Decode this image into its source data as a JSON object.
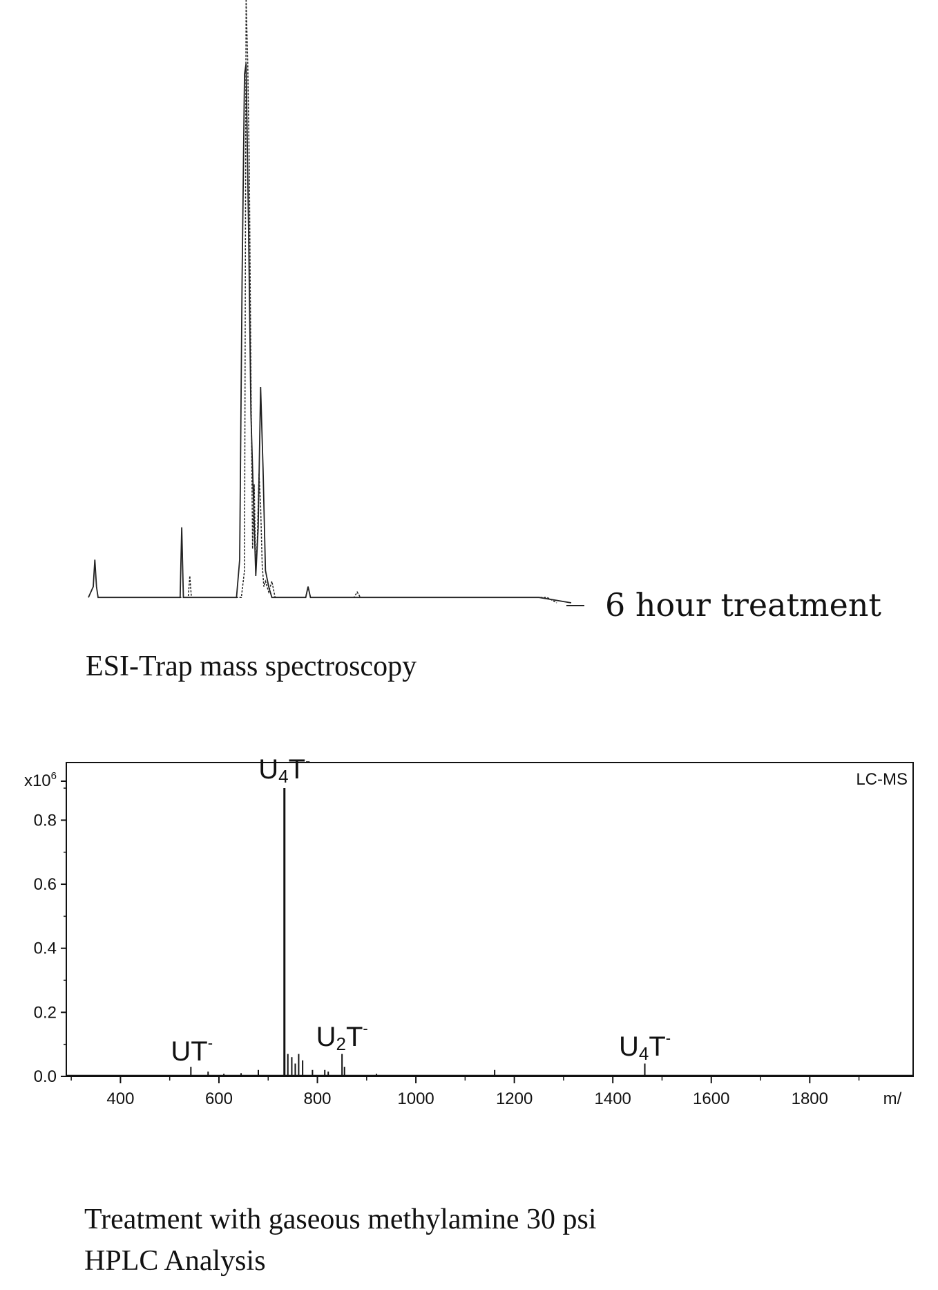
{
  "top_panel": {
    "trace_label": "6 hour treatment",
    "caption": "ESI-Trap mass spectroscopy"
  },
  "bottom_panel": {
    "captions": [
      "Treatment with gaseous methylamine 30 psi",
      "HPLC Analysis"
    ]
  },
  "chart_data": [
    {
      "type": "line",
      "title": "",
      "trace_label": "6 hour treatment",
      "xlabel": "",
      "ylabel": "",
      "axes_visible": false,
      "series": [
        {
          "line_style": "solid",
          "x": [
            0,
            6,
            8,
            10,
            12,
            16,
            20,
            34,
            40,
            108,
            114,
            116,
            118,
            120,
            122,
            126,
            130,
            184,
            188,
            191,
            194,
            196,
            199,
            202,
            205,
            208,
            211,
            214,
            217,
            220,
            224,
            228,
            232,
            236,
            240,
            270,
            273,
            276,
            280,
            284,
            330,
            336,
            340,
            400,
            480,
            560,
            600
          ],
          "y": [
            1,
            3,
            8,
            3,
            1,
            1,
            1,
            1,
            1,
            1,
            1,
            14,
            1,
            1,
            1,
            1,
            1,
            1,
            8,
            60,
            98,
            100,
            70,
            35,
            20,
            5,
            14,
            40,
            25,
            6,
            3,
            1,
            1,
            1,
            1,
            1,
            3,
            1,
            1,
            1,
            1,
            1,
            1,
            1,
            1,
            1,
            0
          ]
        },
        {
          "line_style": "dashed",
          "x": [
            40,
            60,
            100,
            124,
            126,
            128,
            132,
            150,
            190,
            194,
            196,
            198,
            200,
            202,
            204,
            206,
            208,
            210,
            212,
            214,
            216,
            218,
            220,
            224,
            228,
            232,
            240,
            270,
            273,
            276,
            280,
            330,
            334,
            338,
            400,
            480,
            520,
            570,
            582
          ],
          "y": [
            1,
            1,
            1,
            1,
            5,
            1,
            1,
            1,
            1,
            6,
            112,
            100,
            80,
            42,
            10,
            22,
            6,
            12,
            24,
            18,
            7,
            3,
            4,
            2,
            4,
            1,
            1,
            1,
            3,
            1,
            1,
            1,
            2,
            1,
            1,
            1,
            1,
            1,
            0
          ]
        }
      ]
    },
    {
      "type": "bar",
      "title": "",
      "xlabel": "m/",
      "ylabel": "",
      "y_scale_label": "x10",
      "y_scale_exponent": "6",
      "instrument_label": "LC-MS",
      "xlim": [
        290,
        2010
      ],
      "ylim": [
        0,
        1.0
      ],
      "x_ticks": [
        400,
        600,
        800,
        1000,
        1200,
        1400,
        1600,
        1800
      ],
      "y_ticks": [
        0.0,
        0.2,
        0.4,
        0.6,
        0.8
      ],
      "x_tick_labels": [
        "400",
        "600",
        "800",
        "1000",
        "1200",
        "1400",
        "1600",
        "1800"
      ],
      "y_tick_labels": [
        "0.0",
        "0.2",
        "0.4",
        "0.6",
        "0.8"
      ],
      "peaks": [
        {
          "mz": 543,
          "intensity": 0.03
        },
        {
          "mz": 578,
          "intensity": 0.015
        },
        {
          "mz": 610,
          "intensity": 0.008
        },
        {
          "mz": 645,
          "intensity": 0.01
        },
        {
          "mz": 680,
          "intensity": 0.02
        },
        {
          "mz": 733,
          "intensity": 0.9
        },
        {
          "mz": 740,
          "intensity": 0.07
        },
        {
          "mz": 748,
          "intensity": 0.06
        },
        {
          "mz": 755,
          "intensity": 0.04
        },
        {
          "mz": 762,
          "intensity": 0.07
        },
        {
          "mz": 770,
          "intensity": 0.05
        },
        {
          "mz": 790,
          "intensity": 0.02
        },
        {
          "mz": 815,
          "intensity": 0.02
        },
        {
          "mz": 822,
          "intensity": 0.015
        },
        {
          "mz": 850,
          "intensity": 0.07
        },
        {
          "mz": 855,
          "intensity": 0.03
        },
        {
          "mz": 920,
          "intensity": 0.008
        },
        {
          "mz": 1160,
          "intensity": 0.02
        },
        {
          "mz": 1465,
          "intensity": 0.04
        }
      ],
      "annotations": [
        {
          "base": "U",
          "sub": "4",
          "tail": "T",
          "sup": "-",
          "mz": 733,
          "y": 0.93
        },
        {
          "base": "UT",
          "sub": "",
          "tail": "",
          "sup": "-",
          "mz": 545,
          "y": 0.05
        },
        {
          "base": "U",
          "sub": "2",
          "tail": "T",
          "sup": "-",
          "mz": 850,
          "y": 0.095
        },
        {
          "base": "U",
          "sub": "4",
          "tail": "T",
          "sup": "-",
          "mz": 1465,
          "y": 0.065
        }
      ]
    }
  ]
}
